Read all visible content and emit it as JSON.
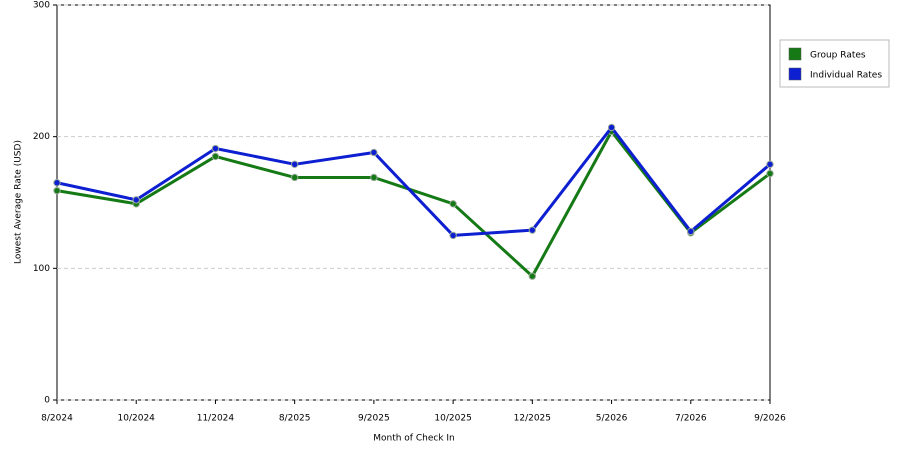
{
  "chart_data": {
    "type": "line",
    "x_label": "Month of Check In",
    "y_label": "Lowest Average Rate (USD)",
    "categories": [
      "8/2024",
      "10/2024",
      "11/2024",
      "8/2025",
      "9/2025",
      "10/2025",
      "12/2025",
      "5/2026",
      "7/2026",
      "9/2026"
    ],
    "series": [
      {
        "name": "Group Rates",
        "color": "#157a15",
        "values": [
          159,
          149,
          185,
          169,
          169,
          149,
          94,
          204,
          127,
          172
        ]
      },
      {
        "name": "Individual Rates",
        "color": "#0d1fd0",
        "values": [
          165,
          152,
          191,
          179,
          188,
          125,
          129,
          207,
          128,
          179
        ]
      }
    ],
    "ylim": [
      0,
      300
    ],
    "yticks": [
      0,
      100,
      200,
      300
    ],
    "grid": true,
    "legend": "right"
  }
}
